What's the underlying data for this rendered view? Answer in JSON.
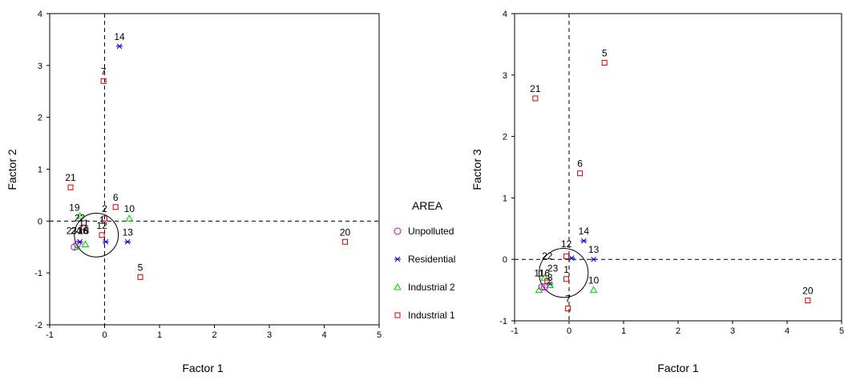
{
  "legend": {
    "title": "AREA",
    "entries": [
      {
        "label": "Unpolluted",
        "marker": "circle",
        "color": "#cc00cc"
      },
      {
        "label": "Residential",
        "marker": "asterisk",
        "color": "#0000cc"
      },
      {
        "label": "Industrial 2",
        "marker": "triangle",
        "color": "#00cc00"
      },
      {
        "label": "Industrial 1",
        "marker": "square",
        "color": "#cc0000"
      }
    ]
  },
  "chart_data": [
    {
      "type": "scatter",
      "title": "",
      "xlabel": "Factor 1",
      "ylabel": "Factor 2",
      "xlim": [
        -1,
        5
      ],
      "ylim": [
        -2,
        4
      ],
      "xticks": [
        "-1",
        "0",
        "1",
        "2",
        "3",
        "4",
        "5"
      ],
      "yticks": [
        "-2",
        "-1",
        "0",
        "1",
        "2",
        "3",
        "4"
      ],
      "reference_lines": {
        "x": 0,
        "y": 0,
        "style": "dashed"
      },
      "circle": {
        "center": [
          -0.15,
          -0.27
        ],
        "radius": 0.4
      },
      "series": [
        {
          "name": "Unpolluted",
          "points": [
            {
              "x": -0.55,
              "y": -0.5,
              "label": ""
            },
            {
              "x": -0.5,
              "y": -0.45,
              "label": ""
            }
          ]
        },
        {
          "name": "Residential",
          "points": [
            {
              "x": 0.27,
              "y": 3.37,
              "label": "14"
            },
            {
              "x": 0.02,
              "y": -0.4,
              "label": ""
            },
            {
              "x": 0.42,
              "y": -0.4,
              "label": "13"
            },
            {
              "x": -0.45,
              "y": -0.4,
              "label": ""
            }
          ]
        },
        {
          "name": "Industrial 2",
          "points": [
            {
              "x": 0.45,
              "y": 0.05,
              "label": "10"
            },
            {
              "x": -0.35,
              "y": -0.45,
              "label": ""
            },
            {
              "x": -0.5,
              "y": -0.5,
              "label": ""
            },
            {
              "x": -0.45,
              "y": 0.1,
              "label": ""
            }
          ]
        },
        {
          "name": "Industrial 1",
          "points": [
            {
              "x": -0.02,
              "y": 2.7,
              "label": "7"
            },
            {
              "x": -0.62,
              "y": 0.65,
              "label": "21"
            },
            {
              "x": 0.2,
              "y": 0.27,
              "label": "6"
            },
            {
              "x": 0.0,
              "y": 0.05,
              "label": "2"
            },
            {
              "x": -0.05,
              "y": -0.27,
              "label": "12"
            },
            {
              "x": 4.38,
              "y": -0.4,
              "label": "20"
            },
            {
              "x": 0.65,
              "y": -1.08,
              "label": "5"
            },
            {
              "x": -0.38,
              "y": -0.12,
              "label": ""
            }
          ]
        }
      ],
      "cluster_labels": [
        {
          "x": -0.55,
          "y": 0.2,
          "text": "19"
        },
        {
          "x": -0.45,
          "y": 0.0,
          "text": "22"
        },
        {
          "x": -0.38,
          "y": -0.1,
          "text": "11"
        },
        {
          "x": -0.45,
          "y": -0.25,
          "text": "3"
        },
        {
          "x": -0.52,
          "y": -0.25,
          "text": "24"
        },
        {
          "x": -0.05,
          "y": -0.05,
          "text": "1"
        },
        {
          "x": -0.4,
          "y": -0.25,
          "text": "16"
        },
        {
          "x": -0.33,
          "y": -0.25,
          "text": "8"
        },
        {
          "x": -0.6,
          "y": -0.25,
          "text": "23"
        },
        {
          "x": -0.38,
          "y": -0.25,
          "text": "15"
        }
      ]
    },
    {
      "type": "scatter",
      "title": "",
      "xlabel": "Factor 1",
      "ylabel": "Factor 3",
      "xlim": [
        -1,
        5
      ],
      "ylim": [
        -1,
        4
      ],
      "xticks": [
        "-1",
        "0",
        "1",
        "2",
        "3",
        "4",
        "5"
      ],
      "yticks": [
        "-1",
        "0",
        "1",
        "2",
        "3",
        "4"
      ],
      "reference_lines": {
        "x": 0,
        "y": 0,
        "style": "dashed"
      },
      "circle": {
        "center": [
          -0.1,
          -0.22
        ],
        "radius": 0.45
      },
      "series": [
        {
          "name": "Unpolluted",
          "points": [
            {
              "x": -0.5,
              "y": -0.45,
              "label": ""
            },
            {
              "x": -0.45,
              "y": -0.45,
              "label": ""
            }
          ]
        },
        {
          "name": "Residential",
          "points": [
            {
              "x": 0.27,
              "y": 0.3,
              "label": "14"
            },
            {
              "x": 0.05,
              "y": 0.02,
              "label": ""
            },
            {
              "x": 0.45,
              "y": 0.0,
              "label": "13"
            },
            {
              "x": -0.35,
              "y": -0.4,
              "label": ""
            }
          ]
        },
        {
          "name": "Industrial 2",
          "points": [
            {
              "x": 0.45,
              "y": -0.5,
              "label": "10"
            },
            {
              "x": -0.35,
              "y": -0.42,
              "label": ""
            },
            {
              "x": -0.55,
              "y": -0.5,
              "label": ""
            },
            {
              "x": -0.45,
              "y": -0.3,
              "label": ""
            }
          ]
        },
        {
          "name": "Industrial 1",
          "points": [
            {
              "x": 0.65,
              "y": 3.2,
              "label": "5"
            },
            {
              "x": -0.62,
              "y": 2.62,
              "label": "21"
            },
            {
              "x": 0.2,
              "y": 1.4,
              "label": "6"
            },
            {
              "x": -0.05,
              "y": 0.05,
              "label": ""
            },
            {
              "x": -0.05,
              "y": -0.32,
              "label": "1"
            },
            {
              "x": -0.02,
              "y": -0.8,
              "label": "7"
            },
            {
              "x": 4.38,
              "y": -0.67,
              "label": "20"
            },
            {
              "x": -0.4,
              "y": -0.35,
              "label": ""
            }
          ]
        }
      ],
      "cluster_labels": [
        {
          "x": -0.05,
          "y": 0.2,
          "text": "12"
        },
        {
          "x": -0.4,
          "y": 0.0,
          "text": "22"
        },
        {
          "x": -0.3,
          "y": -0.2,
          "text": "23"
        },
        {
          "x": -0.55,
          "y": -0.28,
          "text": "11"
        },
        {
          "x": -0.45,
          "y": -0.28,
          "text": "16"
        },
        {
          "x": -0.35,
          "y": -0.35,
          "text": "8"
        }
      ]
    }
  ]
}
